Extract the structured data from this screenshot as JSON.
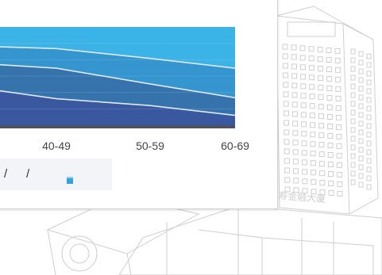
{
  "chart_data": {
    "type": "area",
    "categories": [
      "",
      "40-49",
      "50-59",
      "60-69"
    ],
    "visible_tick_labels": [
      "40-49",
      "50-59",
      "60-69"
    ],
    "series": [
      {
        "values": [
          100,
          100,
          100,
          100
        ]
      },
      {
        "values": [
          80,
          78,
          68,
          58
        ]
      },
      {
        "values": [
          62,
          58,
          42,
          28
        ]
      },
      {
        "values": [
          36,
          27,
          20,
          10
        ]
      }
    ],
    "ylim": [
      0,
      100
    ],
    "grid": true,
    "fill_colors": [
      "#3a58a0",
      "#3673ad",
      "#3595cf",
      "#3bb3e6"
    ],
    "line_color": "#dfe9f4",
    "baseline_color": "#4a5263",
    "legend": {
      "placement": "bottom-left",
      "separators": [
        "/",
        "/"
      ],
      "swatch_color": "#34a0dc"
    }
  },
  "background": {
    "description_colors": {
      "sketch": "#c8c8c8"
    },
    "watermark_text": "中国北京 国寿金融大厦"
  }
}
